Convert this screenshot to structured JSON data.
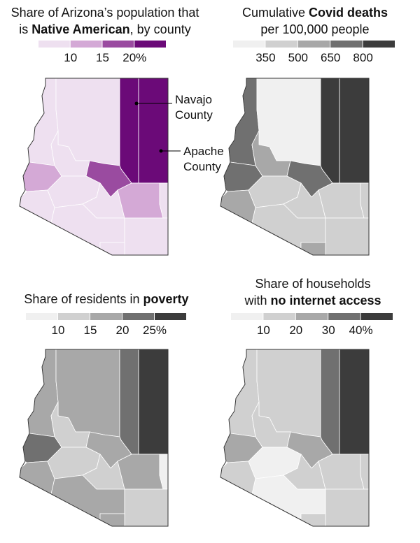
{
  "panels": [
    {
      "title": [
        [
          "Share of Arizona’s population that"
        ],
        [
          "is ",
          "Native American",
          ", by county"
        ]
      ],
      "legend": {
        "colors": [
          "#eee0f0",
          "#d4a9d6",
          "#9a4ba0",
          "#6b0a78"
        ],
        "labels": [
          "10",
          "15",
          "20%"
        ]
      },
      "annotations": [
        [
          "Navajo",
          "County"
        ],
        [
          "Apache",
          "County"
        ]
      ]
    },
    {
      "title": [
        [
          "Cumulative ",
          "Covid deaths"
        ],
        [
          "per 100,000 people"
        ]
      ],
      "legend": {
        "colors": [
          "#f0f0f0",
          "#d0d0d0",
          "#a8a8a8",
          "#707070",
          "#3c3c3c"
        ],
        "labels": [
          "350",
          "500",
          "650",
          "800"
        ]
      }
    },
    {
      "title": [
        [
          "Share of residents in ",
          "poverty"
        ]
      ],
      "legend": {
        "colors": [
          "#f0f0f0",
          "#d0d0d0",
          "#a8a8a8",
          "#707070",
          "#3c3c3c"
        ],
        "labels": [
          "10",
          "15",
          "20",
          "25%"
        ]
      }
    },
    {
      "title": [
        [
          "Share of households"
        ],
        [
          "with ",
          "no internet access"
        ]
      ],
      "legend": {
        "colors": [
          "#f0f0f0",
          "#d0d0d0",
          "#a8a8a8",
          "#707070",
          "#3c3c3c"
        ],
        "labels": [
          "10",
          "20",
          "30",
          "40%"
        ]
      }
    }
  ]
}
